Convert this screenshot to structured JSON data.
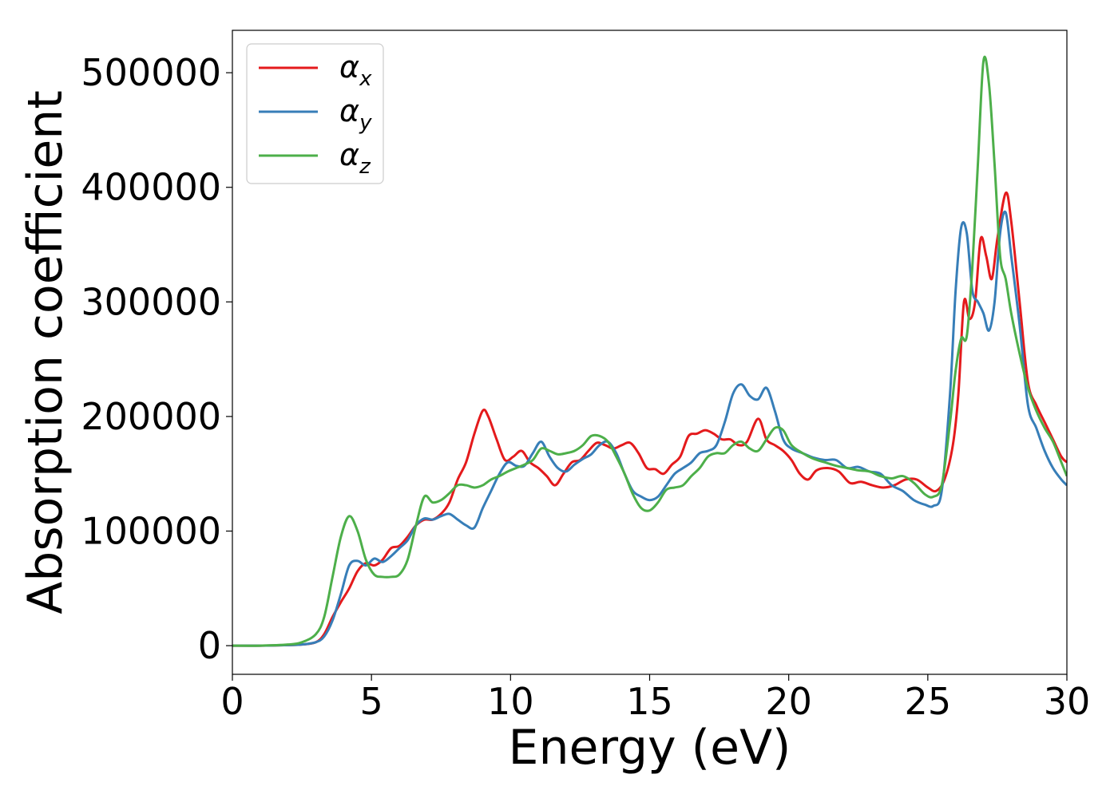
{
  "chart_data": {
    "type": "line",
    "xlabel": "Energy (eV)",
    "ylabel": "Absorption coefficient",
    "xlim": [
      0,
      30
    ],
    "ylim": [
      -25000,
      537000
    ],
    "xticks": [
      0,
      5,
      10,
      15,
      20,
      25,
      30
    ],
    "xtick_labels": [
      "0",
      "5",
      "10",
      "15",
      "20",
      "25",
      "30"
    ],
    "yticks": [
      0,
      100000,
      200000,
      300000,
      400000,
      500000
    ],
    "ytick_labels": [
      "0",
      "100000",
      "200000",
      "300000",
      "400000",
      "500000"
    ],
    "grid": false,
    "legend_position": "top-left",
    "series": [
      {
        "name": "αx",
        "symbol": "α",
        "subscript": "x",
        "color": "#e41a1c",
        "x": [
          0,
          1,
          2,
          2.5,
          3,
          3.3,
          3.6,
          3.9,
          4.2,
          4.5,
          4.8,
          5.1,
          5.4,
          5.7,
          6.0,
          6.3,
          6.6,
          6.9,
          7.2,
          7.5,
          7.8,
          8.1,
          8.4,
          8.7,
          9.0,
          9.2,
          9.5,
          9.8,
          10.1,
          10.4,
          10.7,
          11.0,
          11.3,
          11.6,
          11.9,
          12.2,
          12.5,
          12.8,
          13.1,
          13.4,
          13.7,
          14.0,
          14.3,
          14.6,
          14.9,
          15.2,
          15.5,
          15.8,
          16.1,
          16.4,
          16.7,
          17.0,
          17.3,
          17.6,
          17.9,
          18.2,
          18.5,
          18.9,
          19.2,
          19.5,
          19.8,
          20.1,
          20.4,
          20.7,
          21.0,
          21.4,
          21.8,
          22.2,
          22.6,
          23.0,
          23.4,
          23.8,
          24.2,
          24.6,
          25.0,
          25.3,
          25.6,
          25.9,
          26.1,
          26.3,
          26.5,
          26.7,
          26.9,
          27.1,
          27.3,
          27.5,
          27.8,
          28.0,
          28.3,
          28.6,
          28.9,
          29.2,
          29.5,
          29.8,
          30.0
        ],
        "y": [
          0,
          0,
          500,
          1000,
          3000,
          10000,
          25000,
          38000,
          50000,
          65000,
          72000,
          70000,
          75000,
          85000,
          87000,
          95000,
          105000,
          110000,
          110000,
          115000,
          125000,
          145000,
          160000,
          185000,
          205000,
          200000,
          180000,
          162000,
          165000,
          170000,
          160000,
          155000,
          148000,
          140000,
          150000,
          160000,
          162000,
          170000,
          177000,
          175000,
          172000,
          175000,
          177000,
          168000,
          155000,
          154000,
          150000,
          158000,
          165000,
          183000,
          185000,
          188000,
          185000,
          180000,
          180000,
          175000,
          178000,
          198000,
          180000,
          175000,
          170000,
          162000,
          150000,
          145000,
          153000,
          155000,
          152000,
          142000,
          143000,
          140000,
          138000,
          140000,
          145000,
          145000,
          138000,
          135000,
          145000,
          175000,
          220000,
          300000,
          285000,
          300000,
          355000,
          340000,
          320000,
          355000,
          395000,
          370000,
          300000,
          230000,
          210000,
          195000,
          180000,
          165000,
          160000
        ]
      },
      {
        "name": "αy",
        "symbol": "α",
        "subscript": "y",
        "color": "#377eb8",
        "x": [
          0,
          1,
          2,
          2.5,
          3,
          3.3,
          3.6,
          3.9,
          4.2,
          4.5,
          4.8,
          5.1,
          5.4,
          5.7,
          6.0,
          6.3,
          6.6,
          6.9,
          7.2,
          7.5,
          7.8,
          8.1,
          8.4,
          8.7,
          9.0,
          9.3,
          9.6,
          9.9,
          10.2,
          10.5,
          10.8,
          11.1,
          11.4,
          11.7,
          12.0,
          12.3,
          12.6,
          12.9,
          13.2,
          13.5,
          13.8,
          14.1,
          14.4,
          14.7,
          15.0,
          15.3,
          15.6,
          15.9,
          16.2,
          16.5,
          16.8,
          17.1,
          17.4,
          17.7,
          18.0,
          18.3,
          18.6,
          18.9,
          19.2,
          19.5,
          19.8,
          20.1,
          20.5,
          20.9,
          21.3,
          21.7,
          22.1,
          22.5,
          22.9,
          23.3,
          23.7,
          24.1,
          24.5,
          24.9,
          25.2,
          25.5,
          25.8,
          26.0,
          26.2,
          26.4,
          26.6,
          26.8,
          27.0,
          27.2,
          27.4,
          27.6,
          27.8,
          28.0,
          28.3,
          28.6,
          28.9,
          29.2,
          29.5,
          29.8,
          30.0
        ],
        "y": [
          0,
          0,
          500,
          1000,
          3000,
          8000,
          22000,
          45000,
          70000,
          74000,
          70000,
          76000,
          73000,
          78000,
          85000,
          92000,
          105000,
          111000,
          110000,
          113000,
          115000,
          110000,
          105000,
          103000,
          120000,
          135000,
          150000,
          160000,
          157000,
          157000,
          168000,
          178000,
          165000,
          155000,
          152000,
          158000,
          163000,
          167000,
          175000,
          178000,
          168000,
          150000,
          135000,
          130000,
          127000,
          130000,
          140000,
          150000,
          155000,
          160000,
          168000,
          170000,
          175000,
          195000,
          220000,
          228000,
          218000,
          215000,
          225000,
          205000,
          180000,
          172000,
          168000,
          164000,
          162000,
          162000,
          155000,
          156000,
          152000,
          150000,
          140000,
          135000,
          127000,
          123000,
          122000,
          135000,
          220000,
          310000,
          365000,
          360000,
          310000,
          300000,
          290000,
          275000,
          300000,
          360000,
          378000,
          340000,
          280000,
          210000,
          190000,
          170000,
          155000,
          145000,
          140000
        ]
      },
      {
        "name": "αz",
        "symbol": "α",
        "subscript": "z",
        "color": "#4daf4a",
        "x": [
          0,
          1,
          2,
          2.5,
          3,
          3.3,
          3.6,
          3.9,
          4.2,
          4.5,
          4.8,
          5.1,
          5.4,
          5.7,
          6.0,
          6.3,
          6.6,
          6.9,
          7.2,
          7.5,
          7.8,
          8.1,
          8.4,
          8.7,
          9.0,
          9.3,
          9.6,
          9.9,
          10.2,
          10.5,
          10.8,
          11.1,
          11.4,
          11.7,
          12.0,
          12.3,
          12.6,
          12.9,
          13.2,
          13.5,
          13.8,
          14.1,
          14.4,
          14.7,
          15.0,
          15.3,
          15.6,
          15.9,
          16.2,
          16.5,
          16.8,
          17.1,
          17.4,
          17.7,
          18.0,
          18.3,
          18.6,
          18.9,
          19.2,
          19.5,
          19.8,
          20.1,
          20.5,
          20.9,
          21.3,
          21.7,
          22.1,
          22.5,
          22.9,
          23.3,
          23.7,
          24.1,
          24.5,
          24.9,
          25.2,
          25.5,
          25.8,
          26.0,
          26.2,
          26.4,
          26.6,
          26.8,
          27.0,
          27.2,
          27.4,
          27.6,
          27.8,
          28.0,
          28.3,
          28.6,
          28.9,
          29.2,
          29.5,
          29.8,
          30.0
        ],
        "y": [
          0,
          0,
          1000,
          3000,
          10000,
          25000,
          60000,
          95000,
          113000,
          100000,
          75000,
          62000,
          60000,
          60000,
          62000,
          75000,
          105000,
          130000,
          125000,
          127000,
          133000,
          140000,
          140000,
          138000,
          140000,
          145000,
          148000,
          152000,
          155000,
          158000,
          162000,
          172000,
          170000,
          167000,
          168000,
          170000,
          175000,
          183000,
          183000,
          178000,
          165000,
          150000,
          132000,
          120000,
          118000,
          125000,
          136000,
          138000,
          140000,
          148000,
          155000,
          165000,
          168000,
          168000,
          175000,
          178000,
          172000,
          170000,
          180000,
          190000,
          188000,
          175000,
          168000,
          163000,
          160000,
          157000,
          155000,
          153000,
          152000,
          148000,
          146000,
          148000,
          142000,
          132000,
          130000,
          140000,
          195000,
          240000,
          268000,
          270000,
          330000,
          420000,
          510000,
          490000,
          420000,
          340000,
          320000,
          290000,
          255000,
          225000,
          205000,
          190000,
          178000,
          160000,
          148000
        ]
      }
    ]
  }
}
